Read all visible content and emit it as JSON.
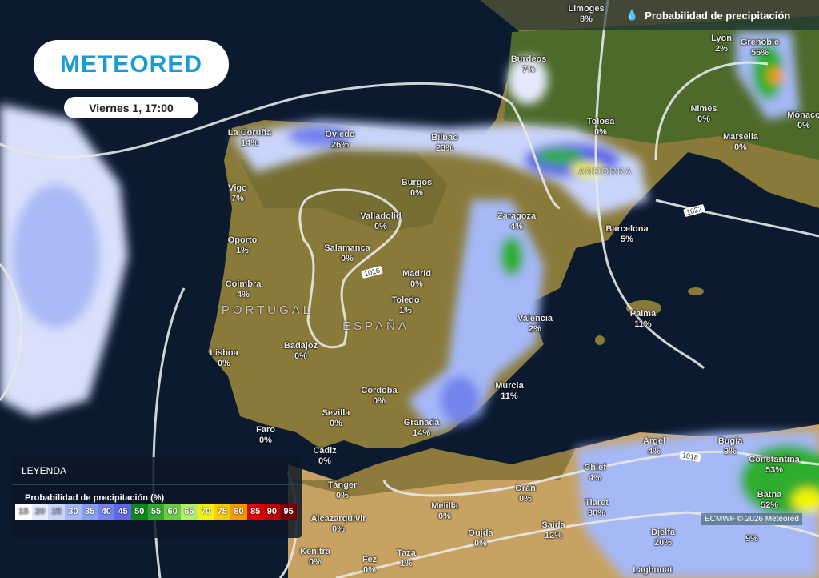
{
  "layer_title": "Probabilidad de precipitación",
  "layer_icon": "drop-icon",
  "logo": "METEORED",
  "date": "Viernes 1, 17:00",
  "credit": "ECMWF © 2026 Meteored",
  "countries": [
    "PORTUGAL",
    "ESPAÑA",
    "ANDORRA"
  ],
  "isobars": [
    "1016",
    "1022",
    "1018"
  ],
  "cities": [
    {
      "name": "Limoges",
      "pct": "8%"
    },
    {
      "name": "Lyon",
      "pct": "2%"
    },
    {
      "name": "Burdeos",
      "pct": "7%"
    },
    {
      "name": "Grenoble",
      "pct": "56%"
    },
    {
      "name": "Nimes",
      "pct": "0%"
    },
    {
      "name": "Tolosa",
      "pct": "0%"
    },
    {
      "name": "Marsella",
      "pct": "0%"
    },
    {
      "name": "Mónaco",
      "pct": "0%"
    },
    {
      "name": "La Coruña",
      "pct": "14%"
    },
    {
      "name": "Oviedo",
      "pct": "26%"
    },
    {
      "name": "Bilbao",
      "pct": "23%"
    },
    {
      "name": "Burgos",
      "pct": "0%"
    },
    {
      "name": "Vigo",
      "pct": "7%"
    },
    {
      "name": "Valladolid",
      "pct": "0%"
    },
    {
      "name": "Zaragoza",
      "pct": "4%"
    },
    {
      "name": "Barcelona",
      "pct": "5%"
    },
    {
      "name": "Oporto",
      "pct": "1%"
    },
    {
      "name": "Salamanca",
      "pct": "0%"
    },
    {
      "name": "Madrid",
      "pct": "0%"
    },
    {
      "name": "Coimbra",
      "pct": "4%"
    },
    {
      "name": "Toledo",
      "pct": "1%"
    },
    {
      "name": "Palma",
      "pct": "11%"
    },
    {
      "name": "Valencia",
      "pct": "2%"
    },
    {
      "name": "Badajoz",
      "pct": "0%"
    },
    {
      "name": "Lisboa",
      "pct": "0%"
    },
    {
      "name": "Córdoba",
      "pct": "0%"
    },
    {
      "name": "Murcia",
      "pct": "11%"
    },
    {
      "name": "Sevilla",
      "pct": "0%"
    },
    {
      "name": "Granada",
      "pct": "14%"
    },
    {
      "name": "Faro",
      "pct": "0%"
    },
    {
      "name": "Cádiz",
      "pct": "0%"
    },
    {
      "name": "Argel",
      "pct": "4%"
    },
    {
      "name": "Bugía",
      "pct": "9%"
    },
    {
      "name": "Constantina",
      "pct": "53%"
    },
    {
      "name": "Chlef",
      "pct": "4%"
    },
    {
      "name": "Tánger",
      "pct": "0%"
    },
    {
      "name": "Orán",
      "pct": "0%"
    },
    {
      "name": "Melilla",
      "pct": "0%"
    },
    {
      "name": "Tiaret",
      "pct": "30%"
    },
    {
      "name": "Batna",
      "pct": "52%"
    },
    {
      "name": "Alcazarquivir",
      "pct": "0%"
    },
    {
      "name": "Saida",
      "pct": "12%"
    },
    {
      "name": "Oujda",
      "pct": "0%"
    },
    {
      "name": "Djelfa",
      "pct": "20%"
    },
    {
      "name": "",
      "pct": "9%"
    },
    {
      "name": "Kenitra",
      "pct": "0%"
    },
    {
      "name": "Taza",
      "pct": "1%"
    },
    {
      "name": "Fez",
      "pct": "0%"
    },
    {
      "name": "Laghouat",
      "pct": ""
    }
  ],
  "legend": {
    "title": "LEYENDA",
    "subtitle": "Probabilidad de precipitación (%)",
    "steps": [
      {
        "v": "15",
        "c": "#ffffff"
      },
      {
        "v": "20",
        "c": "#e4eafc"
      },
      {
        "v": "25",
        "c": "#c8d4fa"
      },
      {
        "v": "30",
        "c": "#a6b8f6"
      },
      {
        "v": "35",
        "c": "#8a9ef2"
      },
      {
        "v": "40",
        "c": "#7484ee"
      },
      {
        "v": "45",
        "c": "#5e68e8"
      },
      {
        "v": "50",
        "c": "#0a8a1a"
      },
      {
        "v": "55",
        "c": "#2fae2f"
      },
      {
        "v": "60",
        "c": "#6ccc4a"
      },
      {
        "v": "65",
        "c": "#b4ec70"
      },
      {
        "v": "70",
        "c": "#f4f400"
      },
      {
        "v": "75",
        "c": "#f6cc00"
      },
      {
        "v": "80",
        "c": "#f49a00"
      },
      {
        "v": "85",
        "c": "#e00000"
      },
      {
        "v": "90",
        "c": "#c00000"
      },
      {
        "v": "95",
        "c": "#7a0000"
      }
    ]
  }
}
